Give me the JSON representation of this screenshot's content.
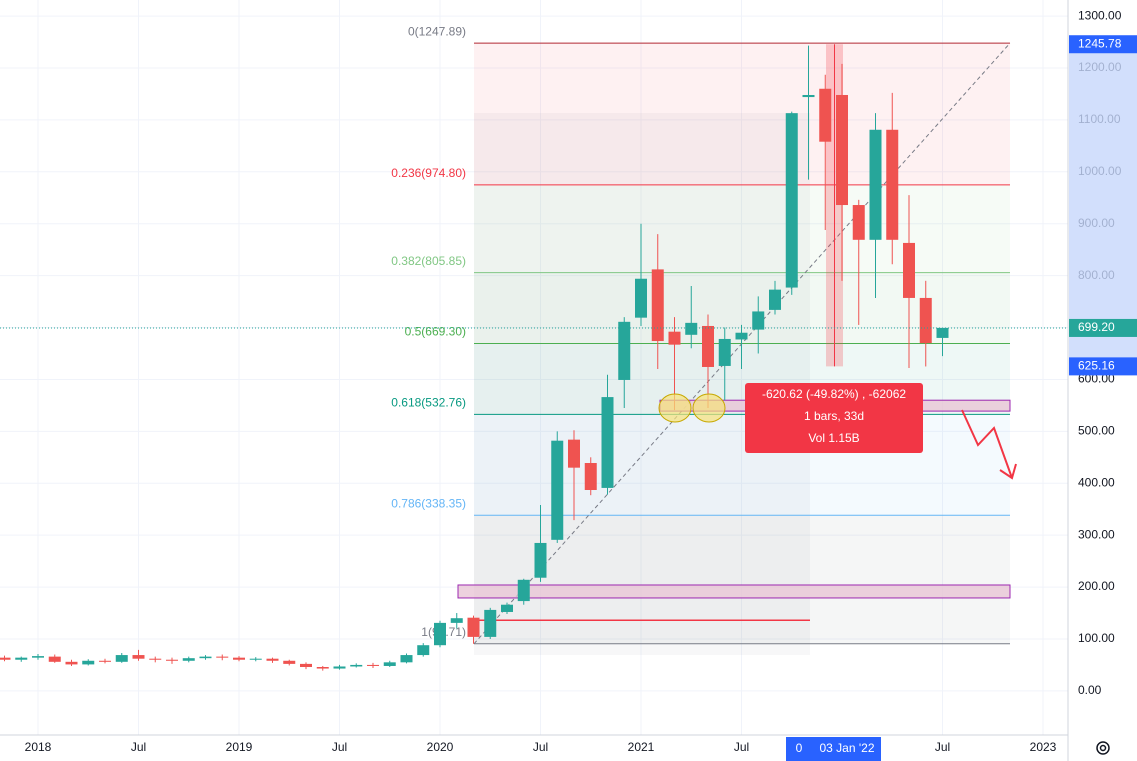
{
  "chart_data": {
    "type": "candlestick",
    "categories": [
      null,
      null,
      "2018",
      null,
      null,
      null,
      null,
      null,
      "Jul",
      null,
      null,
      null,
      null,
      null,
      "2019",
      null,
      null,
      null,
      null,
      null,
      "Jul",
      null,
      null,
      null,
      null,
      null,
      "2020",
      null,
      null,
      null,
      null,
      null,
      "Jul",
      null,
      null,
      null,
      null,
      null,
      "2021",
      null,
      null,
      null,
      null,
      null,
      "Jul",
      null,
      null,
      null,
      null,
      null,
      null,
      null,
      null,
      null,
      null,
      null,
      "Jul",
      null,
      null,
      null,
      null,
      null,
      "2023"
    ],
    "open": [
      64,
      60,
      64,
      66,
      56,
      51,
      58,
      56,
      69,
      62,
      60,
      58,
      63,
      66,
      64,
      60,
      62,
      58,
      52,
      46,
      43,
      47,
      50,
      48,
      55,
      69,
      88,
      131,
      141,
      104,
      152,
      173,
      218,
      291,
      484,
      439,
      391,
      599,
      719,
      812,
      692,
      686,
      703,
      626,
      677,
      696,
      734,
      777,
      1144,
      1160,
      1148,
      936,
      869,
      1081,
      863,
      757,
      680,
      null,
      null,
      null,
      null,
      null,
      null
    ],
    "high": [
      68,
      66,
      71,
      70,
      60,
      61,
      62,
      73,
      79,
      66,
      64,
      66,
      69,
      70,
      67,
      65,
      64,
      60,
      55,
      48,
      50,
      53,
      54,
      58,
      72,
      92,
      135,
      150,
      145,
      160,
      170,
      216,
      358,
      500,
      502,
      450,
      609,
      720,
      900,
      880,
      720,
      780,
      725,
      700,
      705,
      760,
      790,
      1116,
      1243,
      1187,
      1208,
      946,
      1113,
      1152,
      955,
      790,
      700,
      null,
      null,
      null,
      null,
      null,
      null
    ],
    "low": [
      57,
      56,
      60,
      54,
      48,
      49,
      53,
      54,
      58,
      55,
      52,
      55,
      60,
      59,
      57,
      57,
      54,
      49,
      42,
      39,
      41,
      45,
      44,
      46,
      53,
      66,
      84,
      120,
      90.71,
      100,
      148,
      166,
      210,
      285,
      329,
      377,
      378,
      545,
      703,
      620,
      541,
      660,
      545,
      560,
      620,
      650,
      725,
      763,
      985,
      888,
      790,
      705,
      757,
      822,
      622,
      625,
      645,
      null,
      null,
      null,
      null,
      null,
      null
    ],
    "close": [
      60,
      64,
      67,
      56,
      51,
      58,
      56,
      69,
      62,
      60,
      58,
      63,
      66,
      64,
      60,
      62,
      58,
      52,
      46,
      43,
      47,
      50,
      48,
      55,
      69,
      88,
      131,
      140,
      104,
      156,
      166,
      214,
      285,
      482,
      430,
      387,
      566,
      711,
      794,
      674,
      667,
      709,
      624,
      678,
      690,
      731,
      773,
      1113,
      1148,
      1058,
      936,
      869,
      1081,
      869,
      757,
      670,
      699.2,
      null,
      null,
      null,
      null,
      null,
      null
    ],
    "up_color": "#26a69a",
    "down_color": "#ef5350",
    "ylim": [
      -85,
      1331
    ],
    "yticks": [
      {
        "value": 0,
        "label": "0.00"
      },
      {
        "value": 100,
        "label": "100.00"
      },
      {
        "value": 200,
        "label": "200.00"
      },
      {
        "value": 300,
        "label": "300.00"
      },
      {
        "value": 400,
        "label": "400.00"
      },
      {
        "value": 500,
        "label": "500.00"
      },
      {
        "value": 600,
        "label": "600.00"
      },
      {
        "value": 700,
        "label": "700.00"
      },
      {
        "value": 800,
        "label": "800.00"
      },
      {
        "value": 900,
        "label": "900.00"
      },
      {
        "value": 1000,
        "label": "1000.00"
      },
      {
        "value": 1100,
        "label": "1100.00"
      },
      {
        "value": 1200,
        "label": "1200.00"
      },
      {
        "value": 1300,
        "label": "1300.00"
      }
    ],
    "grid": true,
    "fib_levels": [
      {
        "label": "0(1247.89)",
        "value": 1247.89,
        "color": "#787b86"
      },
      {
        "label": "0.236(974.80)",
        "value": 974.8,
        "color": "#f23645"
      },
      {
        "label": "0.382(805.85)",
        "value": 805.85,
        "color": "#81c784"
      },
      {
        "label": "0.5(669.30)",
        "value": 669.3,
        "color": "#4caf50"
      },
      {
        "label": "0.618(532.76)",
        "value": 532.76,
        "color": "#089981"
      },
      {
        "label": "0.786(338.35)",
        "value": 338.35,
        "color": "#64b5f6"
      },
      {
        "label": "1(90.71)",
        "value": 90.71,
        "color": "#787b86"
      }
    ],
    "zones": [
      {
        "from": 539,
        "to": 560,
        "color": "#e8c5d6"
      },
      {
        "from": 179,
        "to": 204,
        "color": "#e8c5d6"
      }
    ],
    "hline": {
      "value": 136,
      "color": "#f23645"
    },
    "current_price": {
      "value": 699.2,
      "label": "699.20",
      "color": "#26a69a"
    },
    "price_labels": [
      {
        "value": 1245.78,
        "label": "1245.78",
        "color": "#2962ff"
      },
      {
        "value": 625.16,
        "label": "625.16",
        "color": "#2962ff"
      }
    ],
    "measure": {
      "from": 1245.78,
      "to": 625.16,
      "color": "#f23645",
      "lines": [
        "-620.62 (-49.82%) , -62062",
        "1 bars, 33d",
        "Vol 1.15B"
      ]
    },
    "crosshair": {
      "count": "0",
      "date": "03 Jan '22"
    }
  }
}
